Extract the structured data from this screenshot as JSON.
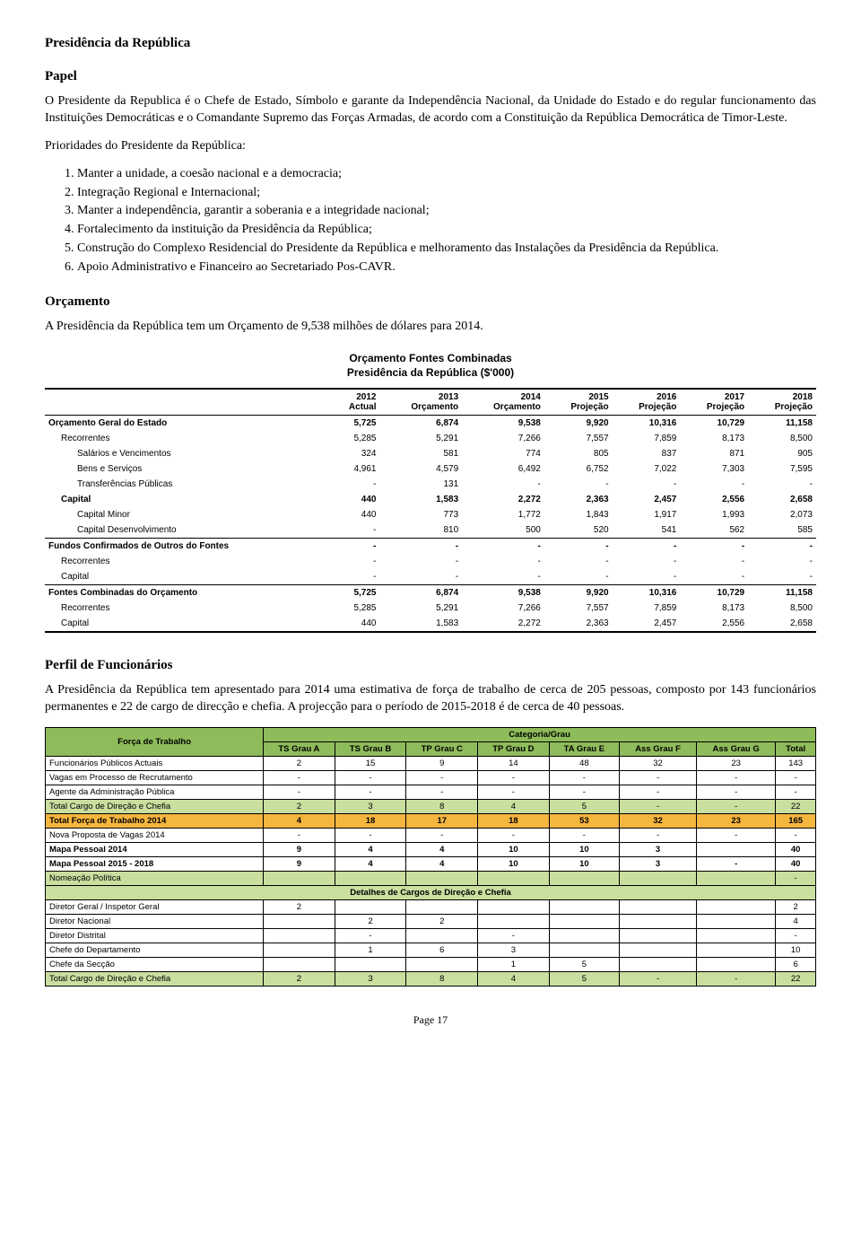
{
  "doc": {
    "title": "Presidência da República",
    "s1": "Papel",
    "p1": "O Presidente da Republica é o Chefe de Estado, Símbolo e garante da Independência Nacional, da Unidade do Estado e do regular funcionamento das Instituições Democráticas e o Comandante Supremo das Forças Armadas, de acordo com a Constituição da República Democrática de Timor-Leste.",
    "p2": "Prioridades do Presidente da República:",
    "list": [
      "Manter a unidade, a coesão nacional e a democracia;",
      "Integração Regional e Internacional;",
      "Manter a independência, garantir a soberania e a integridade nacional;",
      "Fortalecimento da instituição da Presidência da República;",
      "Construção do Complexo Residencial do Presidente da República e melhoramento das Instalações da Presidência da República.",
      "Apoio Administrativo e Financeiro ao Secretariado Pos-CAVR."
    ],
    "s2": "Orçamento",
    "p3": "A Presidência da República tem um Orçamento de 9,538 milhões de dólares para 2014.",
    "tblTitle": "Orçamento Fontes Combinadas",
    "tblSub": "Presidência da República  ($'000)",
    "s3": "Perfil de Funcionários",
    "p4": "A Presidência da República tem apresentado para 2014 uma estimativa de força de trabalho de cerca de 205 pessoas, composto por 143 funcionários permanentes e 22 de cargo de direcção e chefia. A projecção para o período de 2015-2018 é de cerca de 40 pessoas.",
    "footer": "Page 17"
  },
  "budget": {
    "cols": [
      "",
      "2012 Actual",
      "2013 Orçamento",
      "2014 Orçamento",
      "2015 Projeção",
      "2016 Projeção",
      "2017 Projeção",
      "2018 Projeção"
    ],
    "rows": [
      {
        "c": [
          "Orçamento Geral do Estado",
          "5,725",
          "6,874",
          "9,538",
          "9,920",
          "10,316",
          "10,729",
          "11,158"
        ],
        "cls": "bold section-top",
        "ind": 0
      },
      {
        "c": [
          "Recorrentes",
          "5,285",
          "5,291",
          "7,266",
          "7,557",
          "7,859",
          "8,173",
          "8,500"
        ],
        "cls": "",
        "ind": 1
      },
      {
        "c": [
          "Salários e Vencimentos",
          "324",
          "581",
          "774",
          "805",
          "837",
          "871",
          "905"
        ],
        "cls": "",
        "ind": 2
      },
      {
        "c": [
          "Bens e Serviços",
          "4,961",
          "4,579",
          "6,492",
          "6,752",
          "7,022",
          "7,303",
          "7,595"
        ],
        "cls": "",
        "ind": 2
      },
      {
        "c": [
          "Transferências Públicas",
          "-",
          "131",
          "-",
          "-",
          "-",
          "-",
          "-"
        ],
        "cls": "",
        "ind": 2
      },
      {
        "c": [
          "Capital",
          "440",
          "1,583",
          "2,272",
          "2,363",
          "2,457",
          "2,556",
          "2,658"
        ],
        "cls": "bold",
        "ind": 1
      },
      {
        "c": [
          "Capital Minor",
          "440",
          "773",
          "1,772",
          "1,843",
          "1,917",
          "1,993",
          "2,073"
        ],
        "cls": "",
        "ind": 2
      },
      {
        "c": [
          "Capital Desenvolvimento",
          "-",
          "810",
          "500",
          "520",
          "541",
          "562",
          "585"
        ],
        "cls": "",
        "ind": 2
      },
      {
        "c": [
          "Fundos Confirmados de Outros do Fontes",
          "-",
          "-",
          "-",
          "-",
          "-",
          "-",
          "-"
        ],
        "cls": "bold section-top",
        "ind": 0
      },
      {
        "c": [
          "Recorrentes",
          "-",
          "-",
          "-",
          "-",
          "-",
          "-",
          "-"
        ],
        "cls": "",
        "ind": 1
      },
      {
        "c": [
          "Capital",
          "-",
          "-",
          "-",
          "-",
          "-",
          "-",
          "-"
        ],
        "cls": "",
        "ind": 1
      },
      {
        "c": [
          "Fontes Combinadas do Orçamento",
          "5,725",
          "6,874",
          "9,538",
          "9,920",
          "10,316",
          "10,729",
          "11,158"
        ],
        "cls": "bold section-top",
        "ind": 0
      },
      {
        "c": [
          "Recorrentes",
          "5,285",
          "5,291",
          "7,266",
          "7,557",
          "7,859",
          "8,173",
          "8,500"
        ],
        "cls": "",
        "ind": 1
      },
      {
        "c": [
          "Capital",
          "440",
          "1,583",
          "2,272",
          "2,363",
          "2,457",
          "2,556",
          "2,658"
        ],
        "cls": "last",
        "ind": 1
      }
    ]
  },
  "staff": {
    "hdrTop": "Categoria/Grau",
    "hdrLeft": "Força de Trabalho",
    "cols": [
      "TS Grau A",
      "TS Grau B",
      "TP Grau C",
      "TP Grau D",
      "TA Grau E",
      "Ass Grau F",
      "Ass Grau G",
      "Total"
    ],
    "rows": [
      {
        "c": [
          "Funcionários Públicos Actuais",
          "2",
          "15",
          "9",
          "14",
          "48",
          "32",
          "23",
          "143"
        ],
        "cls": ""
      },
      {
        "c": [
          "Vagas em Processo de Recrutamento",
          "-",
          "-",
          "-",
          "-",
          "-",
          "-",
          "-",
          "-"
        ],
        "cls": ""
      },
      {
        "c": [
          "Agente da Administração Pública",
          "-",
          "-",
          "-",
          "-",
          "-",
          "-",
          "-",
          "-"
        ],
        "cls": ""
      },
      {
        "c": [
          "Total Cargo de Direção e Chefia",
          "2",
          "3",
          "8",
          "4",
          "5",
          "-",
          "-",
          "22"
        ],
        "cls": "row-green"
      },
      {
        "c": [
          "Total Força de Trabalho 2014",
          "4",
          "18",
          "17",
          "18",
          "53",
          "32",
          "23",
          "165"
        ],
        "cls": "row-orange"
      },
      {
        "c": [
          "Nova Proposta de Vagas 2014",
          "-",
          "-",
          "-",
          "-",
          "-",
          "-",
          "-",
          "-"
        ],
        "cls": ""
      },
      {
        "c": [
          "Mapa Pessoal 2014",
          "9",
          "4",
          "4",
          "10",
          "10",
          "3",
          "",
          "40"
        ],
        "cls": "row-bold"
      },
      {
        "c": [
          "Mapa Pessoal 2015 - 2018",
          "9",
          "4",
          "4",
          "10",
          "10",
          "3",
          "-",
          "40"
        ],
        "cls": "row-bold"
      },
      {
        "c": [
          "Nomeação Política",
          "",
          "",
          "",
          "",
          "",
          "",
          "",
          "-"
        ],
        "cls": "row-green"
      }
    ],
    "detLabel": "Detalhes de Cargos de Direção e Chefia",
    "det": [
      {
        "c": [
          "Diretor Geral / Inspetor Geral",
          "2",
          "",
          "",
          "",
          "",
          "",
          "",
          "2"
        ]
      },
      {
        "c": [
          "Diretor Nacional",
          "",
          "2",
          "2",
          "",
          "",
          "",
          "",
          "4"
        ]
      },
      {
        "c": [
          "Diretor Distrital",
          "",
          "-",
          "",
          "-",
          "",
          "",
          "",
          "-"
        ]
      },
      {
        "c": [
          "Chefe do Departamento",
          "",
          "1",
          "6",
          "3",
          "",
          "",
          "",
          "10"
        ]
      },
      {
        "c": [
          "Chefe da Secção",
          "",
          "",
          "",
          "1",
          "5",
          "",
          "",
          "6"
        ]
      },
      {
        "c": [
          "Total Cargo de Direção e Chefia",
          "2",
          "3",
          "8",
          "4",
          "5",
          "-",
          "-",
          "22"
        ],
        "cls": "row-green"
      }
    ]
  }
}
